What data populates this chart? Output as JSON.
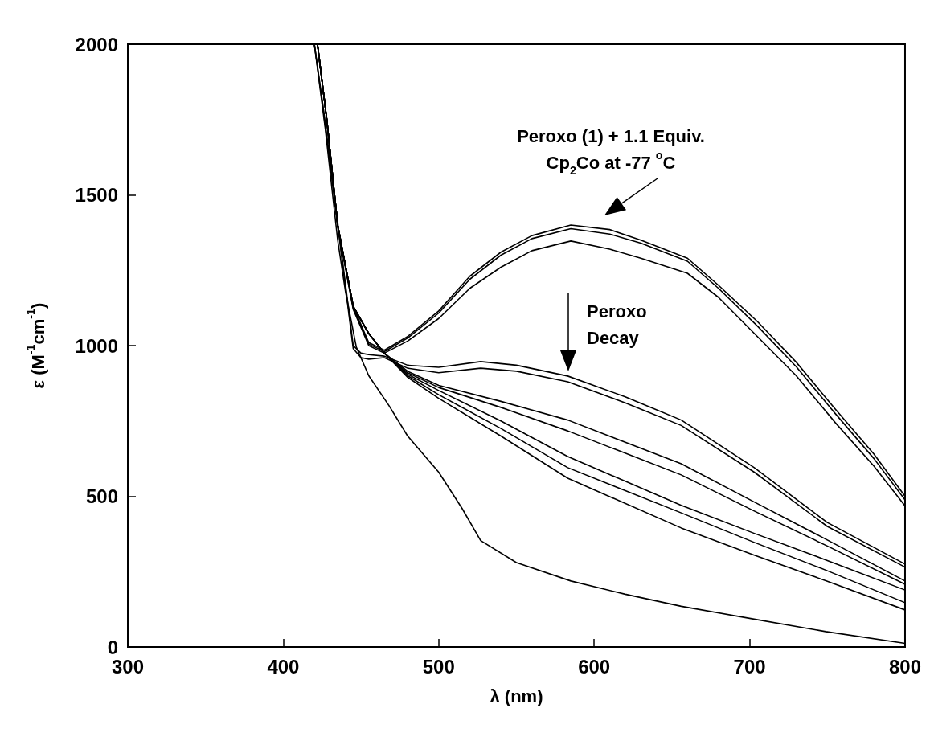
{
  "chart_data": {
    "type": "line",
    "xlabel": "λ (nm)",
    "ylabel": "ε (M$^{-1}$cm$^{-1}$)",
    "xlim": [
      300,
      800
    ],
    "ylim": [
      0,
      2000
    ],
    "xticks": [
      300,
      400,
      500,
      600,
      700,
      800
    ],
    "yticks": [
      0,
      500,
      1000,
      1500,
      2000
    ],
    "grid": false,
    "marker": "none",
    "line_style": "solid",
    "annotations": [
      "Peroxo (1) + 1.1 Equiv.\nCp$_{2}$Co at -77 $^{o}$C",
      "Peroxo\nDecay"
    ],
    "series": [
      {
        "color": "#000000",
        "x": [
          422,
          428,
          435,
          445,
          455,
          465,
          480,
          500,
          520,
          540,
          560,
          585,
          610,
          630,
          660,
          680,
          705,
          730,
          755,
          780,
          800
        ],
        "values": [
          2000,
          1750,
          1400,
          1130,
          1010,
          985,
          1030,
          1115,
          1230,
          1310,
          1365,
          1400,
          1385,
          1350,
          1290,
          1200,
          1080,
          945,
          790,
          640,
          500
        ]
      },
      {
        "color": "#000000",
        "x": [
          422,
          428,
          435,
          445,
          455,
          465,
          480,
          500,
          520,
          540,
          560,
          585,
          610,
          630,
          660,
          680,
          705,
          730,
          755,
          780,
          800
        ],
        "values": [
          2000,
          1750,
          1400,
          1125,
          1005,
          980,
          1025,
          1108,
          1220,
          1300,
          1355,
          1388,
          1370,
          1340,
          1280,
          1190,
          1065,
          930,
          775,
          625,
          488
        ]
      },
      {
        "color": "#000000",
        "x": [
          422,
          428,
          435,
          445,
          455,
          465,
          480,
          500,
          520,
          540,
          560,
          585,
          610,
          630,
          660,
          680,
          705,
          730,
          755,
          780,
          800
        ],
        "values": [
          2000,
          1750,
          1395,
          1120,
          1000,
          975,
          1015,
          1090,
          1190,
          1260,
          1315,
          1347,
          1320,
          1290,
          1240,
          1160,
          1030,
          900,
          745,
          600,
          468
        ]
      },
      {
        "color": "#000000",
        "x": [
          420,
          426,
          434,
          445,
          450,
          455,
          465,
          480,
          500,
          527,
          550,
          583,
          620,
          656,
          703,
          750,
          800
        ],
        "values": [
          2000,
          1780,
          1450,
          1000,
          975,
          970,
          965,
          935,
          928,
          947,
          935,
          899,
          830,
          753,
          595,
          413,
          275
        ]
      },
      {
        "color": "#000000",
        "x": [
          420,
          426,
          434,
          445,
          450,
          455,
          465,
          480,
          500,
          527,
          550,
          583,
          620,
          656,
          703,
          750,
          800
        ],
        "values": [
          2000,
          1770,
          1440,
          990,
          960,
          955,
          960,
          925,
          910,
          925,
          915,
          880,
          810,
          735,
          580,
          400,
          265
        ]
      },
      {
        "color": "#000000",
        "x": [
          422,
          428,
          435,
          445,
          455,
          465,
          480,
          500,
          540,
          583,
          656,
          703,
          750,
          800
        ],
        "values": [
          2000,
          1750,
          1400,
          1130,
          1040,
          975,
          915,
          868,
          815,
          753,
          608,
          481,
          355,
          219
        ]
      },
      {
        "color": "#000000",
        "x": [
          422,
          428,
          435,
          445,
          455,
          465,
          480,
          500,
          540,
          583,
          656,
          703,
          750,
          800
        ],
        "values": [
          2000,
          1750,
          1400,
          1130,
          1040,
          975,
          910,
          861,
          795,
          717,
          571,
          451,
          335,
          208
        ]
      },
      {
        "color": "#000000",
        "x": [
          422,
          428,
          435,
          445,
          455,
          465,
          480,
          500,
          540,
          583,
          656,
          703,
          750,
          800
        ],
        "values": [
          2000,
          1750,
          1400,
          1130,
          1040,
          975,
          905,
          851,
          750,
          632,
          470,
          377,
          287,
          189
        ]
      },
      {
        "color": "#000000",
        "x": [
          422,
          428,
          435,
          445,
          455,
          465,
          480,
          500,
          540,
          583,
          656,
          703,
          750,
          800
        ],
        "values": [
          2000,
          1750,
          1400,
          1130,
          1040,
          975,
          900,
          837,
          725,
          595,
          445,
          347,
          253,
          147
        ]
      },
      {
        "color": "#000000",
        "x": [
          422,
          428,
          435,
          445,
          455,
          465,
          480,
          500,
          540,
          583,
          656,
          703,
          750,
          800
        ],
        "values": [
          2000,
          1750,
          1400,
          1130,
          1040,
          975,
          895,
          825,
          700,
          560,
          395,
          305,
          218,
          123
        ]
      },
      {
        "color": "#000000",
        "x": [
          420,
          427,
          435,
          440,
          447,
          455,
          468,
          480,
          500,
          515,
          527,
          550,
          585,
          620,
          656,
          700,
          749,
          800
        ],
        "values": [
          2000,
          1720,
          1350,
          1180,
          995,
          900,
          801,
          700,
          580,
          460,
          353,
          280,
          219,
          175,
          135,
          95,
          51,
          12
        ]
      }
    ]
  }
}
